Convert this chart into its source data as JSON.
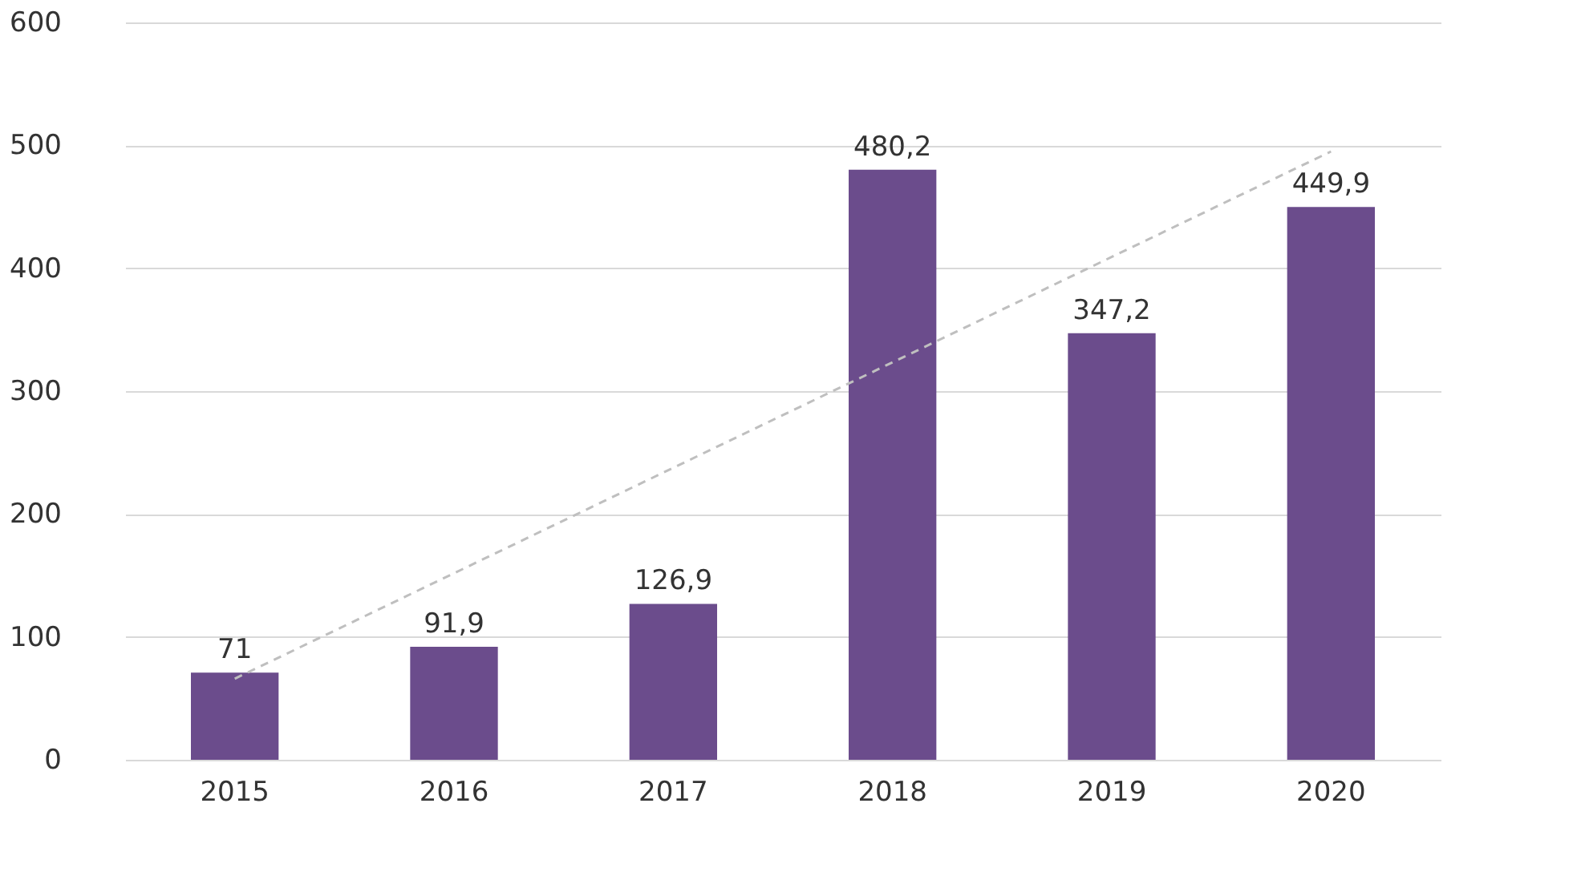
{
  "chart_data": {
    "type": "bar",
    "categories": [
      "2015",
      "2016",
      "2017",
      "2018",
      "2019",
      "2020"
    ],
    "series": [
      {
        "color": "#6b4c8c",
        "values": [
          71,
          91.9,
          126.9,
          480.2,
          347.2,
          449.9
        ],
        "value_labels": [
          "71",
          "91,9",
          "126,9",
          "480,2",
          "347,2",
          "449,9"
        ]
      },
      {
        "type": "line",
        "color": "#bfbfbf",
        "line_style": "dashed",
        "values": [
          66,
          null,
          null,
          null,
          null,
          495
        ]
      }
    ],
    "ylim": [
      0,
      600
    ],
    "yticks": [
      0,
      100,
      200,
      300,
      400,
      500,
      600
    ],
    "grid": "y"
  }
}
